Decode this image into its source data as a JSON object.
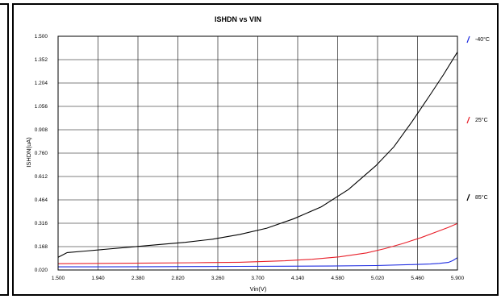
{
  "chart_data": {
    "type": "line",
    "title": "ISHDN vs VIN",
    "xlabel": "Vin(V)",
    "ylabel": "ISHDN(uA)",
    "xlim": [
      1.5,
      5.9
    ],
    "ylim": [
      0.02,
      1.5
    ],
    "x_ticks": [
      "1.500",
      "1.940",
      "2.380",
      "2.820",
      "3.260",
      "3.700",
      "4.140",
      "4.580",
      "5.020",
      "5.460",
      "5.900"
    ],
    "y_ticks": [
      "0.020",
      "0.168",
      "0.316",
      "0.464",
      "0.612",
      "0.760",
      "0.908",
      "1.056",
      "1.204",
      "1.352",
      "1.500"
    ],
    "grid": true,
    "legend_position": "right",
    "series": [
      {
        "name": "-40°C",
        "color": "#1f2de0",
        "x": [
          1.5,
          2.0,
          2.5,
          3.0,
          3.5,
          4.0,
          4.5,
          5.0,
          5.4,
          5.6,
          5.7,
          5.8,
          5.85,
          5.9
        ],
        "y": [
          0.04,
          0.04,
          0.041,
          0.042,
          0.043,
          0.044,
          0.045,
          0.048,
          0.054,
          0.058,
          0.062,
          0.068,
          0.08,
          0.098
        ]
      },
      {
        "name": "25°C",
        "color": "#e8202a",
        "x": [
          1.5,
          2.0,
          2.5,
          3.0,
          3.5,
          4.0,
          4.3,
          4.6,
          4.9,
          5.1,
          5.3,
          5.5,
          5.7,
          5.8,
          5.9
        ],
        "y": [
          0.06,
          0.062,
          0.064,
          0.066,
          0.069,
          0.078,
          0.088,
          0.103,
          0.128,
          0.155,
          0.188,
          0.225,
          0.268,
          0.29,
          0.315
        ]
      },
      {
        "name": "85°C",
        "color": "#000000",
        "x": [
          1.5,
          1.6,
          1.8,
          2.0,
          2.3,
          2.6,
          2.9,
          3.2,
          3.5,
          3.8,
          4.1,
          4.4,
          4.7,
          5.0,
          5.2,
          5.4,
          5.6,
          5.75,
          5.9
        ],
        "y": [
          0.1,
          0.13,
          0.14,
          0.15,
          0.165,
          0.18,
          0.195,
          0.215,
          0.245,
          0.285,
          0.345,
          0.42,
          0.53,
          0.68,
          0.8,
          0.96,
          1.13,
          1.26,
          1.4
        ]
      }
    ]
  }
}
